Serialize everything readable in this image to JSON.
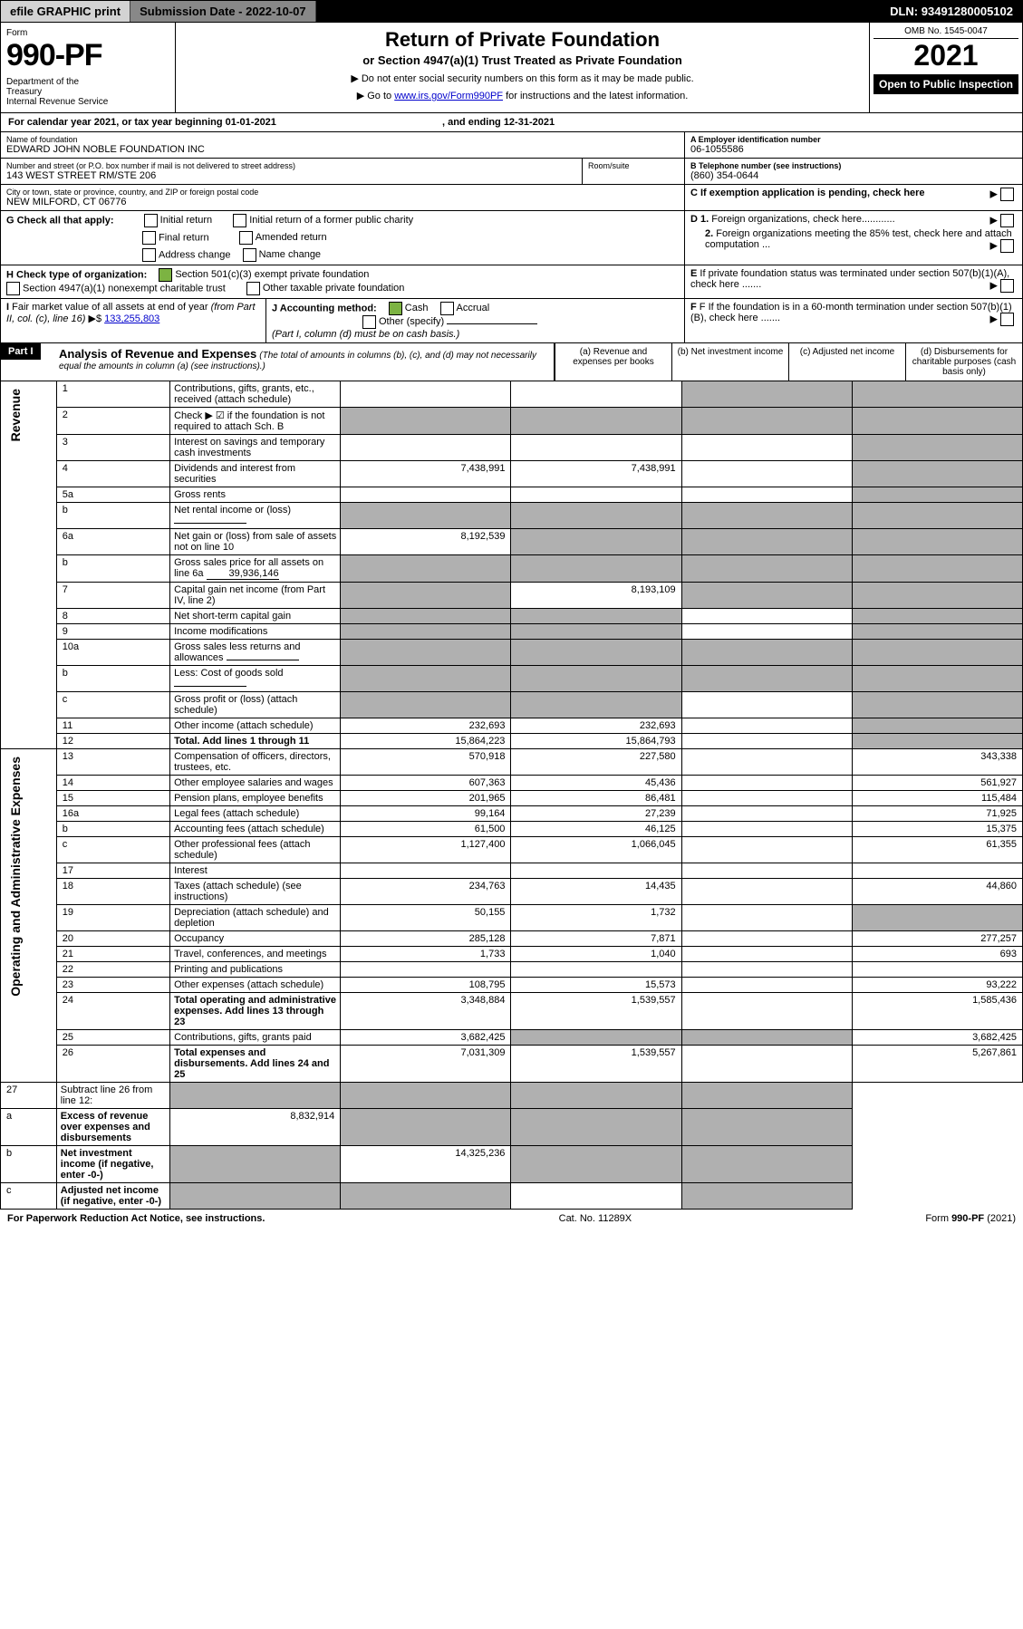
{
  "topbar": {
    "efile": "efile GRAPHIC print",
    "subdate_label": "Submission Date - ",
    "subdate": "2022-10-07",
    "dln_label": "DLN: ",
    "dln": "93491280005102"
  },
  "header": {
    "form_label": "Form",
    "form_no": "990-PF",
    "dept": "Department of the Treasury\nInternal Revenue Service",
    "title": "Return of Private Foundation",
    "subtitle": "or Section 4947(a)(1) Trust Treated as Private Foundation",
    "instr1": "▶ Do not enter social security numbers on this form as it may be made public.",
    "instr2": "▶ Go to www.irs.gov/Form990PF for instructions and the latest information.",
    "omb": "OMB No. 1545-0047",
    "year": "2021",
    "open": "Open to Public Inspection"
  },
  "calendar": {
    "text": "For calendar year 2021, or tax year beginning 01-01-2021",
    "ending": ", and ending 12-31-2021"
  },
  "block_a": {
    "name_label": "Name of foundation",
    "name": "EDWARD JOHN NOBLE FOUNDATION INC",
    "ein_label": "A Employer identification number",
    "ein": "06-1055586",
    "street_label": "Number and street (or P.O. box number if mail is not delivered to street address)",
    "street": "143 WEST STREET RM/STE 206",
    "room_label": "Room/suite",
    "phone_label": "B Telephone number (see instructions)",
    "phone": "(860) 354-0644",
    "city_label": "City or town, state or province, country, and ZIP or foreign postal code",
    "city": "NEW MILFORD, CT  06776",
    "c_label": "C If exemption application is pending, check here"
  },
  "block_g": {
    "label": "G Check all that apply:",
    "opts": [
      "Initial return",
      "Final return",
      "Address change",
      "Initial return of a former public charity",
      "Amended return",
      "Name change"
    ],
    "d1": "D 1. Foreign organizations, check here............",
    "d2": "2. Foreign organizations meeting the 85% test, check here and attach computation ...",
    "e": "E  If private foundation status was terminated under section 507(b)(1)(A), check here .......",
    "f": "F  If the foundation is in a 60-month termination under section 507(b)(1)(B), check here ......."
  },
  "block_h": {
    "label": "H Check type of organization:",
    "opt1": "Section 501(c)(3) exempt private foundation",
    "opt2": "Section 4947(a)(1) nonexempt charitable trust",
    "opt3": "Other taxable private foundation"
  },
  "block_i": {
    "label": "I Fair market value of all assets at end of year (from Part II, col. (c), line 16) ▶$",
    "value": "133,255,803"
  },
  "block_j": {
    "label": "J Accounting method:",
    "cash": "Cash",
    "accrual": "Accrual",
    "other": "Other (specify)",
    "note": "(Part I, column (d) must be on cash basis.)"
  },
  "part1": {
    "label": "Part I",
    "title": "Analysis of Revenue and Expenses",
    "note": "(The total of amounts in columns (b), (c), and (d) may not necessarily equal the amounts in column (a) (see instructions).)",
    "col_a": "(a)    Revenue and expenses per books",
    "col_b": "(b)    Net investment income",
    "col_c": "(c)   Adjusted net income",
    "col_d": "(d)   Disbursements for charitable purposes (cash basis only)"
  },
  "sections": {
    "revenue": "Revenue",
    "expenses": "Operating and Administrative Expenses"
  },
  "rows": [
    {
      "n": "1",
      "d": "Contributions, gifts, grants, etc., received (attach schedule)",
      "a": "",
      "b": "",
      "c": "g",
      "dd": "g"
    },
    {
      "n": "2",
      "d": "Check ▶ ☑ if the foundation is not required to attach Sch. B",
      "a": "g",
      "b": "g",
      "c": "g",
      "dd": "g",
      "checked": true
    },
    {
      "n": "3",
      "d": "Interest on savings and temporary cash investments",
      "a": "",
      "b": "",
      "c": "",
      "dd": "g"
    },
    {
      "n": "4",
      "d": "Dividends and interest from securities",
      "a": "7,438,991",
      "b": "7,438,991",
      "c": "",
      "dd": "g"
    },
    {
      "n": "5a",
      "d": "Gross rents",
      "a": "",
      "b": "",
      "c": "",
      "dd": "g"
    },
    {
      "n": "b",
      "d": "Net rental income or (loss)",
      "a": "g",
      "b": "g",
      "c": "g",
      "dd": "g",
      "inline": ""
    },
    {
      "n": "6a",
      "d": "Net gain or (loss) from sale of assets not on line 10",
      "a": "8,192,539",
      "b": "g",
      "c": "g",
      "dd": "g"
    },
    {
      "n": "b",
      "d": "Gross sales price for all assets on line 6a",
      "a": "g",
      "b": "g",
      "c": "g",
      "dd": "g",
      "inline": "39,936,146"
    },
    {
      "n": "7",
      "d": "Capital gain net income (from Part IV, line 2)",
      "a": "g",
      "b": "8,193,109",
      "c": "g",
      "dd": "g"
    },
    {
      "n": "8",
      "d": "Net short-term capital gain",
      "a": "g",
      "b": "g",
      "c": "",
      "dd": "g"
    },
    {
      "n": "9",
      "d": "Income modifications",
      "a": "g",
      "b": "g",
      "c": "",
      "dd": "g"
    },
    {
      "n": "10a",
      "d": "Gross sales less returns and allowances",
      "a": "g",
      "b": "g",
      "c": "g",
      "dd": "g",
      "inline": ""
    },
    {
      "n": "b",
      "d": "Less: Cost of goods sold",
      "a": "g",
      "b": "g",
      "c": "g",
      "dd": "g",
      "inline": ""
    },
    {
      "n": "c",
      "d": "Gross profit or (loss) (attach schedule)",
      "a": "g",
      "b": "g",
      "c": "",
      "dd": "g"
    },
    {
      "n": "11",
      "d": "Other income (attach schedule)",
      "a": "232,693",
      "b": "232,693",
      "c": "",
      "dd": "g"
    },
    {
      "n": "12",
      "d": "Total. Add lines 1 through 11",
      "a": "15,864,223",
      "b": "15,864,793",
      "c": "",
      "dd": "g",
      "bold": true
    }
  ],
  "exp_rows": [
    {
      "n": "13",
      "d": "Compensation of officers, directors, trustees, etc.",
      "a": "570,918",
      "b": "227,580",
      "c": "",
      "dd": "343,338"
    },
    {
      "n": "14",
      "d": "Other employee salaries and wages",
      "a": "607,363",
      "b": "45,436",
      "c": "",
      "dd": "561,927"
    },
    {
      "n": "15",
      "d": "Pension plans, employee benefits",
      "a": "201,965",
      "b": "86,481",
      "c": "",
      "dd": "115,484"
    },
    {
      "n": "16a",
      "d": "Legal fees (attach schedule)",
      "a": "99,164",
      "b": "27,239",
      "c": "",
      "dd": "71,925"
    },
    {
      "n": "b",
      "d": "Accounting fees (attach schedule)",
      "a": "61,500",
      "b": "46,125",
      "c": "",
      "dd": "15,375"
    },
    {
      "n": "c",
      "d": "Other professional fees (attach schedule)",
      "a": "1,127,400",
      "b": "1,066,045",
      "c": "",
      "dd": "61,355"
    },
    {
      "n": "17",
      "d": "Interest",
      "a": "",
      "b": "",
      "c": "",
      "dd": ""
    },
    {
      "n": "18",
      "d": "Taxes (attach schedule) (see instructions)",
      "a": "234,763",
      "b": "14,435",
      "c": "",
      "dd": "44,860"
    },
    {
      "n": "19",
      "d": "Depreciation (attach schedule) and depletion",
      "a": "50,155",
      "b": "1,732",
      "c": "",
      "dd": "g"
    },
    {
      "n": "20",
      "d": "Occupancy",
      "a": "285,128",
      "b": "7,871",
      "c": "",
      "dd": "277,257"
    },
    {
      "n": "21",
      "d": "Travel, conferences, and meetings",
      "a": "1,733",
      "b": "1,040",
      "c": "",
      "dd": "693"
    },
    {
      "n": "22",
      "d": "Printing and publications",
      "a": "",
      "b": "",
      "c": "",
      "dd": ""
    },
    {
      "n": "23",
      "d": "Other expenses (attach schedule)",
      "a": "108,795",
      "b": "15,573",
      "c": "",
      "dd": "93,222"
    },
    {
      "n": "24",
      "d": "Total operating and administrative expenses. Add lines 13 through 23",
      "a": "3,348,884",
      "b": "1,539,557",
      "c": "",
      "dd": "1,585,436",
      "bold": true
    },
    {
      "n": "25",
      "d": "Contributions, gifts, grants paid",
      "a": "3,682,425",
      "b": "g",
      "c": "g",
      "dd": "3,682,425"
    },
    {
      "n": "26",
      "d": "Total expenses and disbursements. Add lines 24 and 25",
      "a": "7,031,309",
      "b": "1,539,557",
      "c": "",
      "dd": "5,267,861",
      "bold": true
    }
  ],
  "final_rows": [
    {
      "n": "27",
      "d": "Subtract line 26 from line 12:",
      "a": "g",
      "b": "g",
      "c": "g",
      "dd": "g"
    },
    {
      "n": "a",
      "d": "Excess of revenue over expenses and disbursements",
      "a": "8,832,914",
      "b": "g",
      "c": "g",
      "dd": "g",
      "bold": true
    },
    {
      "n": "b",
      "d": "Net investment income (if negative, enter -0-)",
      "a": "g",
      "b": "14,325,236",
      "c": "g",
      "dd": "g",
      "bold": true
    },
    {
      "n": "c",
      "d": "Adjusted net income (if negative, enter -0-)",
      "a": "g",
      "b": "g",
      "c": "",
      "dd": "g",
      "bold": true
    }
  ],
  "footer": {
    "left": "For Paperwork Reduction Act Notice, see instructions.",
    "mid": "Cat. No. 11289X",
    "right": "Form 990-PF (2021)"
  }
}
